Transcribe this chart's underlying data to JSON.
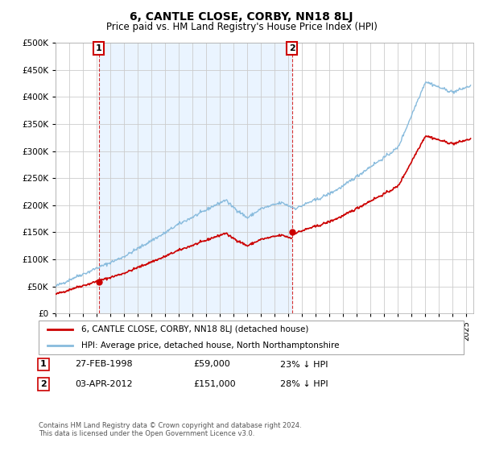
{
  "title": "6, CANTLE CLOSE, CORBY, NN18 8LJ",
  "subtitle": "Price paid vs. HM Land Registry's House Price Index (HPI)",
  "sale1": {
    "date": 1998.15,
    "price": 59000,
    "label": "1",
    "annotation": "27-FEB-1998",
    "amount": "£59,000",
    "pct": "23% ↓ HPI"
  },
  "sale2": {
    "date": 2012.25,
    "price": 151000,
    "label": "2",
    "annotation": "03-APR-2012",
    "amount": "£151,000",
    "pct": "28% ↓ HPI"
  },
  "legend_line1": "6, CANTLE CLOSE, CORBY, NN18 8LJ (detached house)",
  "legend_line2": "HPI: Average price, detached house, North Northamptonshire",
  "footer": "Contains HM Land Registry data © Crown copyright and database right 2024.\nThis data is licensed under the Open Government Licence v3.0.",
  "sale_color": "#cc0000",
  "hpi_color": "#88bbdd",
  "shade_color": "#ddeeff",
  "grid_color": "#cccccc",
  "xmin": 1995,
  "xmax": 2025.5,
  "ymin": 0,
  "ymax": 500000,
  "yticks": [
    0,
    50000,
    100000,
    150000,
    200000,
    250000,
    300000,
    350000,
    400000,
    450000,
    500000
  ],
  "xticks": [
    1995,
    1996,
    1997,
    1998,
    1999,
    2000,
    2001,
    2002,
    2003,
    2004,
    2005,
    2006,
    2007,
    2008,
    2009,
    2010,
    2011,
    2012,
    2013,
    2014,
    2015,
    2016,
    2017,
    2018,
    2019,
    2020,
    2021,
    2022,
    2023,
    2024,
    2025
  ],
  "background_color": "#ffffff",
  "plot_bg_color": "#ffffff"
}
